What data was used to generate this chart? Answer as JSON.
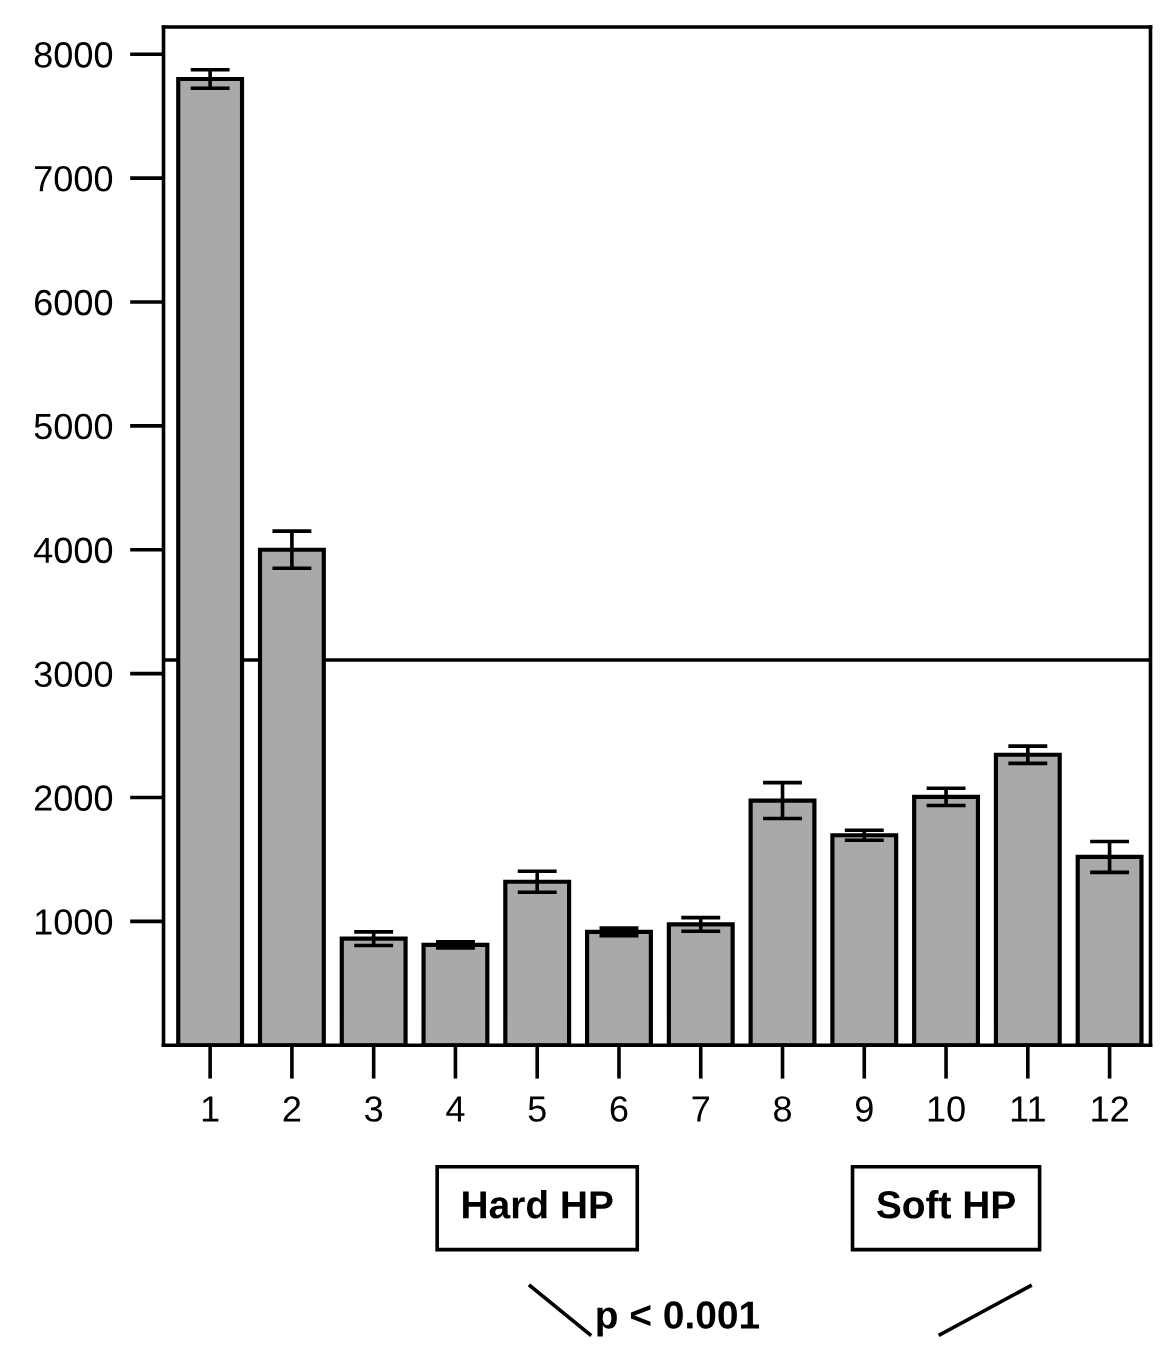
{
  "chart_data": {
    "type": "bar",
    "categories": [
      "1",
      "2",
      "3",
      "4",
      "5",
      "6",
      "7",
      "8",
      "9",
      "10",
      "11",
      "12"
    ],
    "values": [
      7800,
      4000,
      860,
      810,
      1320,
      915,
      975,
      1975,
      1695,
      2005,
      2345,
      1520
    ],
    "errors": [
      75,
      150,
      55,
      25,
      85,
      30,
      55,
      145,
      40,
      70,
      70,
      125
    ],
    "color": "#a9a9a9",
    "ylim": [
      0,
      8220
    ],
    "yticks": [
      1000,
      2000,
      3000,
      4000,
      5000,
      6000,
      7000,
      8000
    ],
    "ref_lines": [
      {
        "axis": "y",
        "value": 3110,
        "color": "#000000"
      }
    ],
    "annotations": [
      "Hard HP",
      "Soft HP",
      "p < 0.001"
    ],
    "grid": false
  }
}
